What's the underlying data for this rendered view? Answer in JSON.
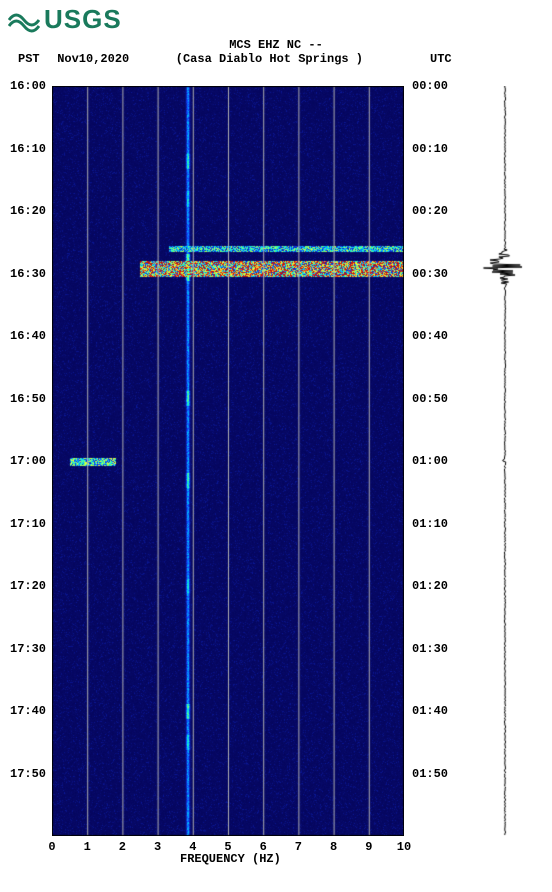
{
  "logo": {
    "agency": "USGS",
    "color": "#1a7a5c"
  },
  "header": {
    "station_line": "MCS EHZ NC --",
    "tz_left": "PST",
    "date": "Nov10,2020",
    "location": "(Casa Diablo Hot Springs )",
    "tz_right": "UTC"
  },
  "spectrogram": {
    "type": "heatmap",
    "xlim": [
      0,
      10
    ],
    "x_ticks": [
      0,
      1,
      2,
      3,
      4,
      5,
      6,
      7,
      8,
      9,
      10
    ],
    "x_axis_label": "FREQUENCY (HZ)",
    "y_time_span_minutes": 120,
    "y_left_ticks": [
      "16:00",
      "16:10",
      "16:20",
      "16:30",
      "16:40",
      "16:50",
      "17:00",
      "17:10",
      "17:20",
      "17:30",
      "17:40",
      "17:50"
    ],
    "y_right_ticks": [
      "00:00",
      "00:10",
      "00:20",
      "00:30",
      "00:40",
      "00:50",
      "01:00",
      "01:10",
      "01:20",
      "01:30",
      "01:40",
      "01:50"
    ],
    "background_color": "#080a6b",
    "gridline_color": "#b0b0b0",
    "colormap": [
      "#00004d",
      "#080a6b",
      "#0a1aa0",
      "#1040ff",
      "#00c8ff",
      "#20ffc0",
      "#c0ff40",
      "#ffff30",
      "#ff6020",
      "#c01010"
    ],
    "vertical_line": {
      "freq_hz": 3.85,
      "width_hz": 0.1,
      "base_intensity": 0.45,
      "pulses": [
        {
          "min": 12,
          "intensity": 0.6
        },
        {
          "min": 18,
          "intensity": 0.55
        },
        {
          "min": 28,
          "intensity": 0.72
        },
        {
          "min": 30,
          "intensity": 0.7
        },
        {
          "min": 50,
          "intensity": 0.65
        },
        {
          "min": 63,
          "intensity": 0.62
        },
        {
          "min": 80,
          "intensity": 0.55
        },
        {
          "min": 100,
          "intensity": 0.65
        },
        {
          "min": 105,
          "intensity": 0.58
        }
      ]
    },
    "horizontal_events": [
      {
        "minute_start": 25.5,
        "minute_end": 26.5,
        "freq_start": 3.3,
        "freq_end": 10.0,
        "intensity": 0.55,
        "texture": "speckle"
      },
      {
        "minute_start": 28.0,
        "minute_end": 30.5,
        "freq_start": 2.5,
        "freq_end": 10.0,
        "intensity": 0.82,
        "texture": "strong-speckle"
      },
      {
        "minute_start": 59.5,
        "minute_end": 60.8,
        "freq_start": 0.5,
        "freq_end": 1.8,
        "intensity": 0.6,
        "texture": "speckle"
      }
    ],
    "noise_floor_speckle": {
      "density": 0.18,
      "intensity": 0.12
    }
  },
  "waveform": {
    "type": "seismogram",
    "color": "#000000",
    "baseline_amplitude": 0.6,
    "events": [
      {
        "minute": 29.0,
        "peak_amplitude": 28,
        "duration_min": 3.5
      },
      {
        "minute": 60.0,
        "peak_amplitude": 3,
        "duration_min": 1.0
      }
    ]
  }
}
